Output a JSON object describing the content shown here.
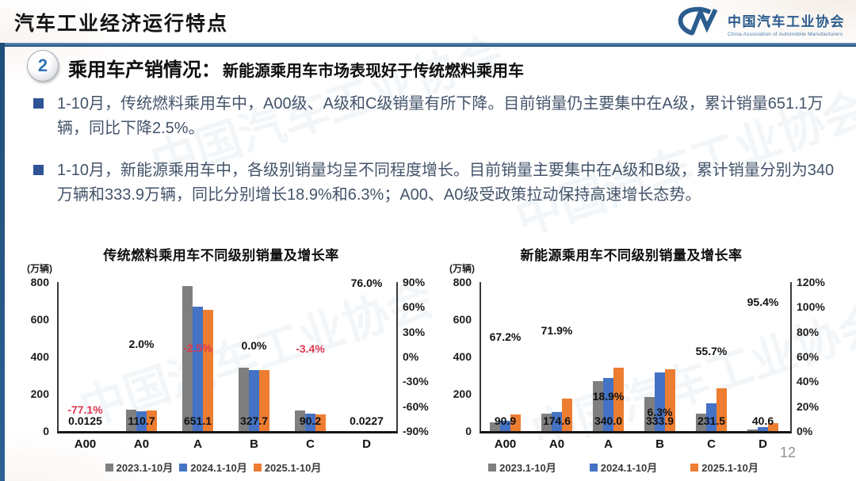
{
  "header": {
    "title": "汽车工业经济运行特点",
    "logo": {
      "mark": "CM",
      "org_cn": "中国汽车工业协会",
      "org_en": "China Association of Automobile Manufacturers"
    }
  },
  "section": {
    "badge": "2",
    "heading": "乘用车产销情况：",
    "subheading": "新能源乘用车市场表现好于传统燃料乘用车"
  },
  "bullets": [
    "1-10月，传统燃料乘用车中，A00级、A级和C级销量有所下降。目前销量仍主要集中在A级，累计销量651.1万辆，同比下降2.5%。",
    "1-10月，新能源乘用车中，各级别销量均呈不同程度增长。目前销量主要集中在A级和B级，累计销量分别为340万辆和333.9万辆，同比分别增长18.9%和6.3%；A00、A0级受政策拉动保持高速增长态势。"
  ],
  "page_number": "12",
  "watermark": "中国汽车工业协会",
  "colors": {
    "gray": "#7F7F7F",
    "blue": "#4472C4",
    "orange": "#ED7D31",
    "negative": "#E0384F",
    "accent": "#1F4E79"
  },
  "chart_data": [
    {
      "type": "bar",
      "title": "传统燃料乘用车不同级别销量及增长率",
      "unit": "(万辆)",
      "categories": [
        "A00",
        "A0",
        "A",
        "B",
        "C",
        "D"
      ],
      "series": [
        {
          "name": "2023.1-10月",
          "color_key": "gray",
          "values": [
            0,
            113,
            780,
            342,
            110,
            0
          ]
        },
        {
          "name": "2024.1-10月",
          "color_key": "blue",
          "values": [
            0.05,
            108.5,
            667.8,
            327.7,
            93.4,
            0.01
          ]
        },
        {
          "name": "2025.1-10月",
          "color_key": "orange",
          "values": [
            0.0125,
            110.7,
            651.1,
            327.7,
            90.2,
            0.0227
          ]
        }
      ],
      "value_labels": [
        "0.0125",
        "110.7",
        "651.1",
        "327.7",
        "90.2",
        "0.0227"
      ],
      "growth_labels": [
        {
          "text": "-77.1%",
          "value": -77.1,
          "negative": true
        },
        {
          "text": "2.0%",
          "value": 2.0,
          "negative": false
        },
        {
          "text": "-2.5%",
          "value": -2.5,
          "negative": true
        },
        {
          "text": "0.0%",
          "value": 0.0,
          "negative": false
        },
        {
          "text": "-3.4%",
          "value": -3.4,
          "negative": true
        },
        {
          "text": "76.0%",
          "value": 76.0,
          "negative": false
        }
      ],
      "left_axis": {
        "min": 0,
        "max": 800,
        "ticks": [
          "800",
          "600",
          "400",
          "200",
          "0"
        ]
      },
      "right_axis": {
        "min": -90,
        "max": 90,
        "ticks": [
          "90%",
          "60%",
          "30%",
          "0%",
          "-30%",
          "-60%",
          "-90%"
        ]
      },
      "legend": [
        "2023.1-10月",
        "2024.1-10月",
        "2025.1-10月"
      ]
    },
    {
      "type": "bar",
      "title": "新能源乘用车不同级别销量及增长率",
      "unit": "(万辆)",
      "categories": [
        "A00",
        "A0",
        "A",
        "B",
        "C",
        "D"
      ],
      "series": [
        {
          "name": "2023.1-10月",
          "color_key": "gray",
          "values": [
            48,
            95,
            270,
            185,
            95,
            8
          ]
        },
        {
          "name": "2024.1-10月",
          "color_key": "blue",
          "values": [
            54,
            102,
            286,
            314,
            149,
            21
          ]
        },
        {
          "name": "2025.1-10月",
          "color_key": "orange",
          "values": [
            90.9,
            174.6,
            340,
            333.9,
            231.5,
            40.6
          ]
        }
      ],
      "value_labels": [
        "90.9",
        "174.6",
        "340.0",
        "333.9",
        "231.5",
        "40.6"
      ],
      "growth_labels": [
        {
          "text": "67.2%",
          "value": 67.2,
          "negative": false
        },
        {
          "text": "71.9%",
          "value": 71.9,
          "negative": false
        },
        {
          "text": "18.9%",
          "value": 18.9,
          "negative": false
        },
        {
          "text": "6.3%",
          "value": 6.3,
          "negative": false
        },
        {
          "text": "55.7%",
          "value": 55.7,
          "negative": false
        },
        {
          "text": "95.4%",
          "value": 95.4,
          "negative": false
        }
      ],
      "left_axis": {
        "min": 0,
        "max": 800,
        "ticks": [
          "800",
          "600",
          "400",
          "200",
          "0"
        ]
      },
      "right_axis": {
        "min": 0,
        "max": 120,
        "ticks": [
          "120%",
          "100%",
          "80%",
          "60%",
          "40%",
          "20%",
          "0%"
        ]
      },
      "legend": [
        "2023.1-10月",
        "2024.1-10月",
        "2025.1-10月"
      ]
    }
  ]
}
